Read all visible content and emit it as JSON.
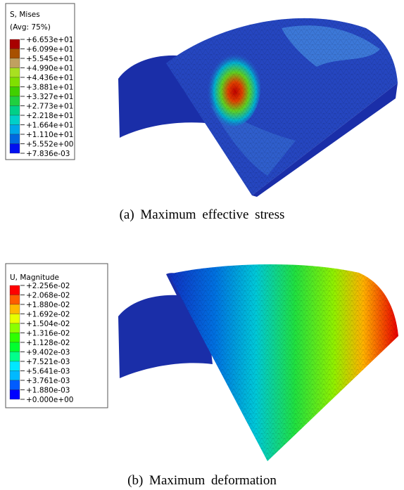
{
  "panels": [
    {
      "legend": {
        "title": "S, Mises",
        "subtitle": "(Avg: 75%)",
        "labels": [
          "+6.653e+01",
          "+6.099e+01",
          "+5.545e+01",
          "+4.990e+01",
          "+4.436e+01",
          "+3.881e+01",
          "+3.327e+01",
          "+2.773e+01",
          "+2.218e+01",
          "+1.664e+01",
          "+1.110e+01",
          "+5.552e+00",
          "+7.836e-03"
        ],
        "colors": [
          "#a80000",
          "#a85000",
          "#c0a060",
          "#a8e020",
          "#80e000",
          "#40d000",
          "#20d040",
          "#00d088",
          "#00d0c8",
          "#00a8e8",
          "#0068e0",
          "#0010f0"
        ]
      },
      "caption": "(a) Maximum effective stress"
    },
    {
      "legend": {
        "title": "U, Magnitude",
        "labels": [
          "+2.256e-02",
          "+2.068e-02",
          "+1.880e-02",
          "+1.692e-02",
          "+1.504e-02",
          "+1.316e-02",
          "+1.128e-02",
          "+9.402e-03",
          "+7.521e-03",
          "+5.641e-03",
          "+3.761e-03",
          "+1.880e-03",
          "+0.000e+00"
        ],
        "colors": [
          "#ff0000",
          "#ff5c00",
          "#ffb900",
          "#e8ff00",
          "#8bff00",
          "#2eff00",
          "#00ff2e",
          "#00ff8b",
          "#00e8ff",
          "#00b9ff",
          "#005cff",
          "#0000ff"
        ]
      },
      "caption": "(b) Maximum deformation"
    }
  ]
}
